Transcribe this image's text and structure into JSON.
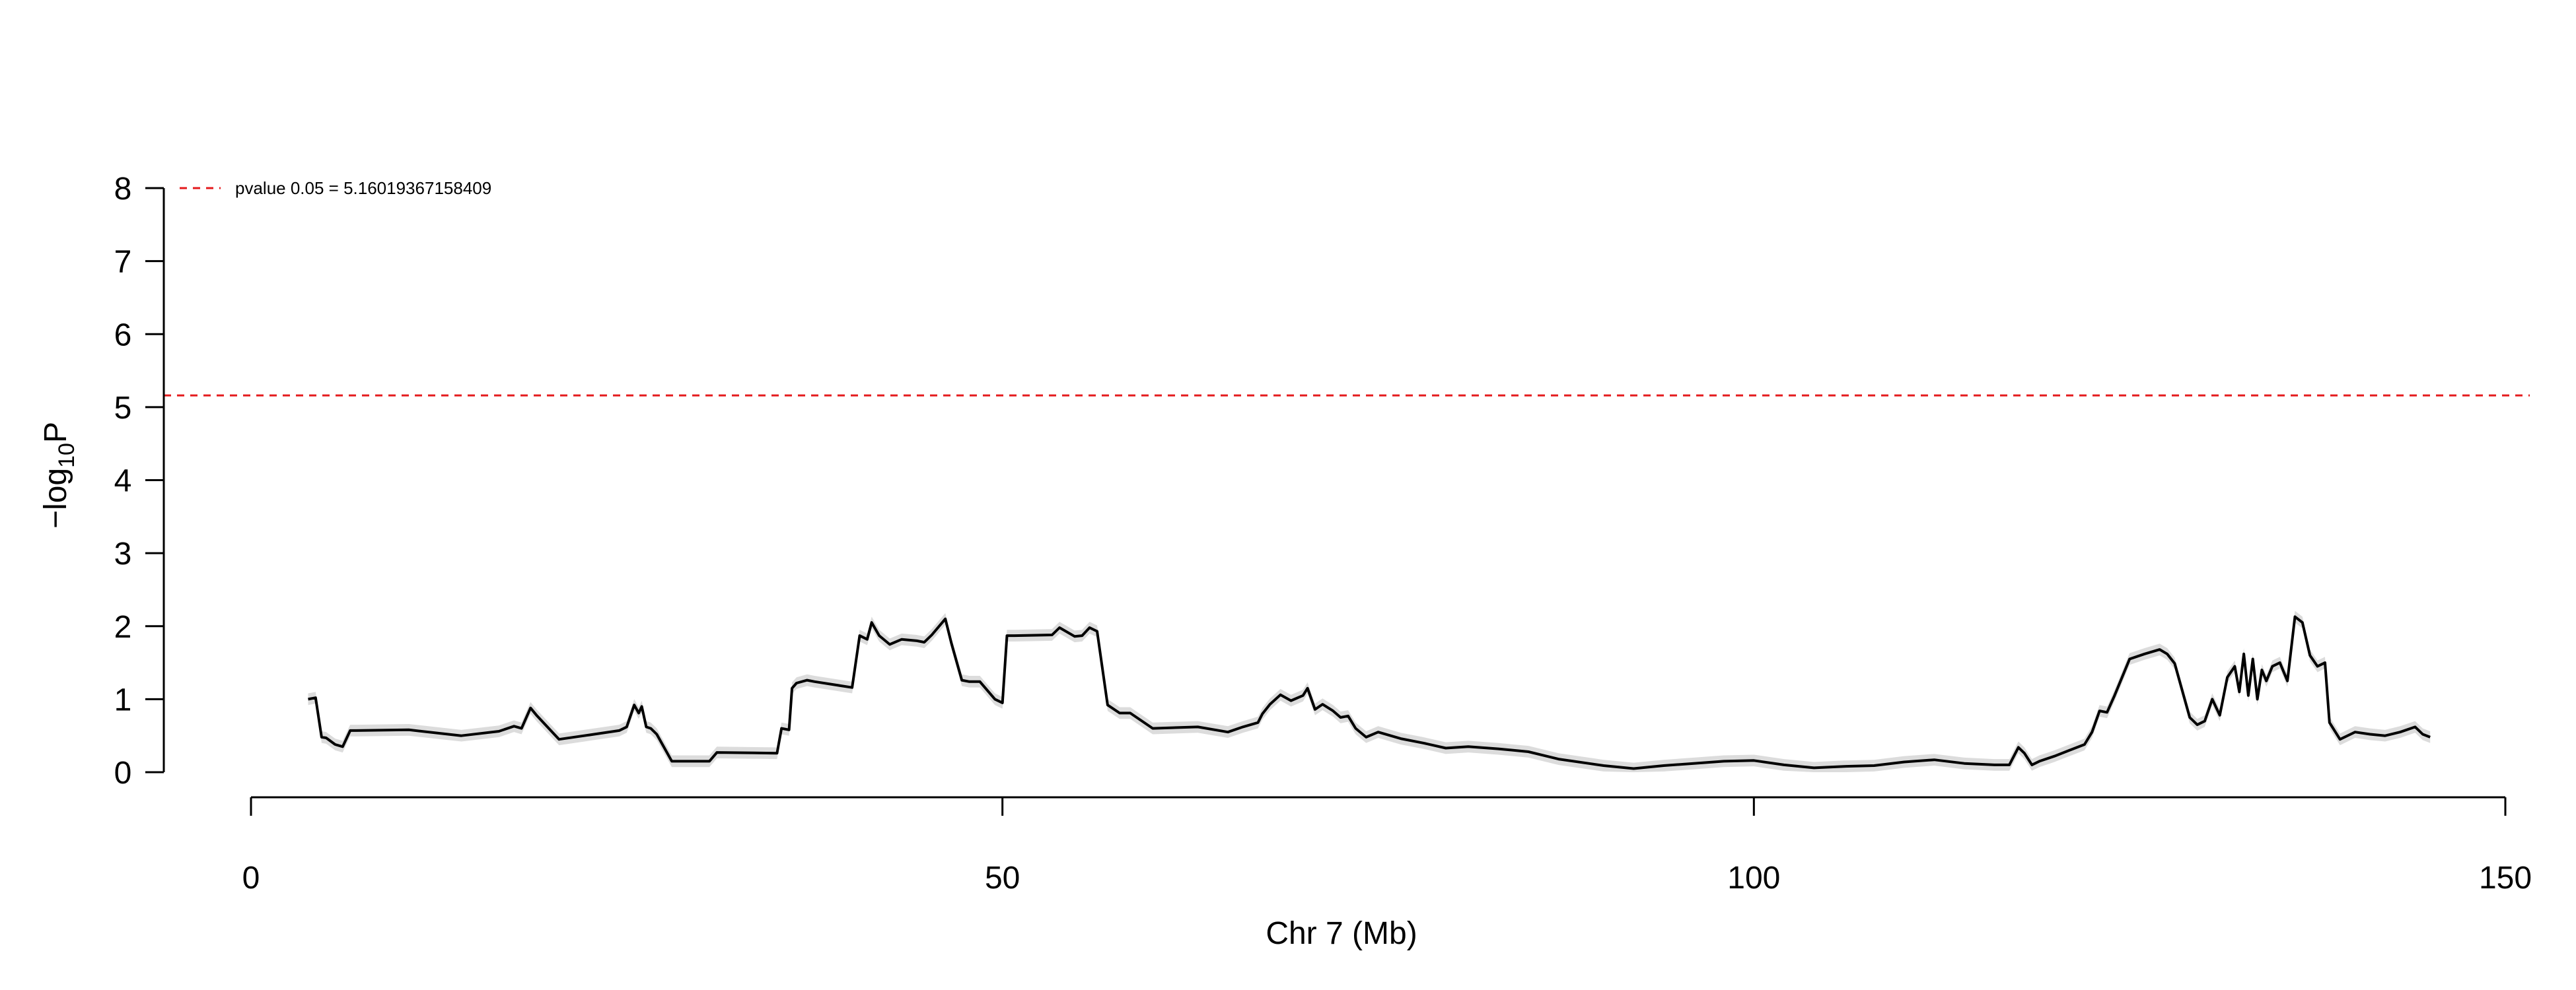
{
  "chart_data": {
    "type": "line",
    "title": "",
    "xlabel": "Chr 7 (Mb)",
    "ylabel": {
      "base": "−log",
      "subscript": "10",
      "suffix": "P"
    },
    "xlim": [
      0,
      150
    ],
    "ylim": [
      0,
      8
    ],
    "xticks": [
      0,
      50,
      100,
      150
    ],
    "yticks": [
      0,
      1,
      2,
      3,
      4,
      5,
      6,
      7,
      8
    ],
    "grid": false,
    "legend": {
      "placement": "top-left",
      "entries": [
        "pvalue 0.05 = 5.16019367158409"
      ]
    },
    "threshold": {
      "label": "pvalue 0.05 = 5.16019367158409",
      "value": 5.16019367158409,
      "color": "#e41a1c",
      "style": "dashed"
    },
    "series_color": "#000000",
    "band_color": "#dcdcdc",
    "series": [
      {
        "x": [
          3.8,
          4.3,
          4.7,
          5.0,
          5.6,
          6.1,
          6.6,
          7.0,
          10.5,
          14.0,
          16.5,
          17.5,
          18.0,
          18.6,
          19.0,
          20.5,
          22.5,
          24.5,
          25.0,
          25.5,
          25.8,
          26.0,
          26.3,
          26.6,
          27.0,
          28.0,
          30.5,
          31.0,
          35.0,
          35.3,
          35.8,
          36.0,
          36.3,
          37.0,
          37.5,
          40.0,
          40.5,
          41.0,
          41.3,
          41.8,
          42.5,
          43.3,
          44.3,
          44.8,
          45.3,
          46.2,
          46.6,
          47.3,
          47.8,
          48.5,
          49.5,
          50.0,
          50.3,
          50.8,
          53.3,
          53.8,
          54.8,
          55.3,
          55.8,
          56.3,
          57.0,
          57.8,
          58.5,
          60.0,
          63.0,
          65.0,
          66.0,
          67.0,
          67.3,
          67.8,
          68.5,
          69.2,
          70.0,
          70.3,
          70.8,
          71.3,
          72.0,
          72.5,
          73.0,
          73.5,
          74.2,
          75.0,
          76.5,
          78.0,
          79.5,
          81.0,
          83.0,
          85.0,
          87.0,
          89.0,
          90.0,
          92.0,
          94.0,
          96.0,
          98.0,
          100.0,
          102.0,
          104.0,
          106.0,
          108.0,
          110.0,
          112.0,
          114.0,
          116.0,
          117.0,
          117.6,
          118.0,
          118.5,
          119.0,
          120.0,
          121.0,
          122.0,
          122.5,
          123.0,
          123.5,
          124.0,
          125.0,
          126.0,
          127.0,
          127.5,
          128.0,
          129.0,
          129.5,
          130.0,
          130.5,
          131.0,
          131.5,
          132.0,
          132.3,
          132.6,
          132.9,
          133.2,
          133.5,
          133.8,
          134.1,
          134.5,
          135.0,
          135.5,
          136.0,
          136.5,
          137.0,
          137.5,
          138.0,
          138.3,
          139.0,
          140.0,
          141.0,
          142.0,
          143.0,
          144.0,
          144.5,
          145.0
        ],
        "values": [
          1.0,
          1.02,
          0.48,
          0.47,
          0.38,
          0.35,
          0.57,
          0.57,
          0.58,
          0.5,
          0.56,
          0.63,
          0.6,
          0.88,
          0.78,
          0.45,
          0.51,
          0.57,
          0.62,
          0.92,
          0.81,
          0.9,
          0.62,
          0.6,
          0.52,
          0.15,
          0.15,
          0.27,
          0.26,
          0.6,
          0.58,
          1.15,
          1.22,
          1.26,
          1.24,
          1.16,
          1.87,
          1.82,
          2.05,
          1.87,
          1.75,
          1.82,
          1.8,
          1.78,
          1.88,
          2.1,
          1.77,
          1.26,
          1.24,
          1.24,
          1.0,
          0.95,
          1.87,
          1.87,
          1.88,
          1.98,
          1.86,
          1.87,
          1.98,
          1.93,
          0.92,
          0.81,
          0.81,
          0.6,
          0.62,
          0.55,
          0.62,
          0.68,
          0.8,
          0.93,
          1.06,
          0.98,
          1.05,
          1.15,
          0.86,
          0.93,
          0.84,
          0.75,
          0.77,
          0.6,
          0.48,
          0.55,
          0.46,
          0.4,
          0.33,
          0.35,
          0.32,
          0.28,
          0.18,
          0.12,
          0.09,
          0.05,
          0.09,
          0.12,
          0.15,
          0.16,
          0.1,
          0.06,
          0.08,
          0.09,
          0.14,
          0.17,
          0.12,
          0.1,
          0.1,
          0.34,
          0.26,
          0.1,
          0.15,
          0.22,
          0.3,
          0.38,
          0.55,
          0.84,
          0.82,
          1.05,
          1.55,
          1.62,
          1.68,
          1.62,
          1.49,
          0.75,
          0.65,
          0.7,
          1.0,
          0.78,
          1.3,
          1.45,
          1.1,
          1.62,
          1.05,
          1.55,
          1.0,
          1.4,
          1.25,
          1.45,
          1.5,
          1.25,
          2.13,
          2.05,
          1.6,
          1.45,
          1.5,
          0.68,
          0.45,
          0.55,
          0.52,
          0.5,
          0.55,
          0.62,
          0.52,
          0.48
        ]
      }
    ]
  }
}
